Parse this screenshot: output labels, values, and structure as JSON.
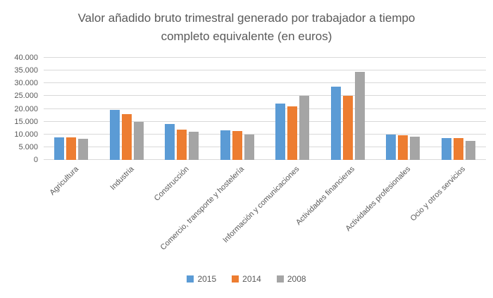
{
  "title": "Valor añadido bruto trimestral generado por trabajador a tiempo completo equivalente (en euros)",
  "colors": {
    "text": "#595959",
    "gridline": "#d9d9d9",
    "background": "#ffffff"
  },
  "chart_data": {
    "type": "bar",
    "title": "Valor añadido bruto trimestral generado por trabajador a tiempo completo equivalente (en euros)",
    "categories": [
      "Agricultura",
      "Industria",
      "Construcción",
      "Comercio, transporte y hostelería",
      "Información y comunicaciones",
      "Actividades financieras",
      "Actividades profesionales",
      "Ocio y otros servicios"
    ],
    "series": [
      {
        "name": "2015",
        "color": "#5b9bd5",
        "values": [
          8800,
          19500,
          14100,
          11500,
          22100,
          28700,
          10000,
          8600
        ]
      },
      {
        "name": "2014",
        "color": "#ed7d31",
        "values": [
          8900,
          17800,
          11800,
          11300,
          21000,
          25200,
          9700,
          8600
        ]
      },
      {
        "name": "2008",
        "color": "#a5a5a5",
        "values": [
          8400,
          15000,
          11000,
          9900,
          25000,
          34500,
          9200,
          7500
        ]
      }
    ],
    "xlabel": "",
    "ylabel": "",
    "ylim": [
      0,
      40000
    ],
    "ytick_step": 5000,
    "ytick_labels": [
      "0",
      "5.000",
      "10.000",
      "15.000",
      "20.000",
      "25.000",
      "30.000",
      "35.000",
      "40.000"
    ],
    "grid": true,
    "legend_position": "bottom"
  }
}
